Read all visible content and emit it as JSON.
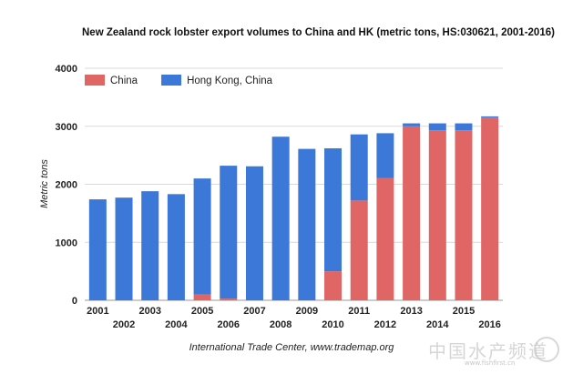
{
  "chart_data": {
    "type": "bar",
    "stacked": true,
    "title": "New Zealand rock lobster export volumes to China and HK (metric tons, HS:030621, 2001-2016)",
    "ylabel": "Metric tons",
    "xlabel": "",
    "ylim": [
      0,
      4000
    ],
    "yticks": [
      "0",
      "1000",
      "2000",
      "3000",
      "4000"
    ],
    "grid": true,
    "legend_position": "top-left",
    "categories": [
      "2001",
      "2002",
      "2003",
      "2004",
      "2005",
      "2006",
      "2007",
      "2008",
      "2009",
      "2010",
      "2011",
      "2012",
      "2013",
      "2014",
      "2015",
      "2016"
    ],
    "series": [
      {
        "name": "China",
        "color": "#e06666",
        "values": [
          0,
          0,
          0,
          0,
          100,
          30,
          0,
          0,
          0,
          500,
          1720,
          2110,
          3000,
          2930,
          2930,
          3150
        ]
      },
      {
        "name": "Hong Kong, China",
        "color": "#3c78d8",
        "values": [
          1740,
          1770,
          1880,
          1830,
          2000,
          2290,
          2310,
          2820,
          2610,
          2120,
          1140,
          770,
          50,
          120,
          120,
          20
        ]
      }
    ]
  },
  "source": "International Trade Center, www.trademap.org",
  "watermark": {
    "text": "中国水产频道",
    "sub": "www.fishfirst.cn"
  },
  "colors": {
    "grid": "#d9d9d9",
    "china": "#e06666",
    "hong_kong": "#3c78d8"
  }
}
